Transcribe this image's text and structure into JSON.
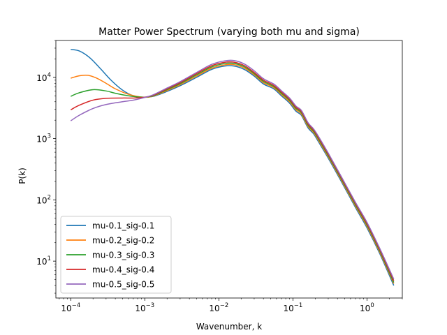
{
  "chart_data": {
    "type": "line",
    "title": "Matter Power Spectrum (varying both mu and sigma)",
    "xlabel": "Wavenumber, k",
    "ylabel": "P(k)",
    "xscale": "log",
    "yscale": "log",
    "xlim": [
      6.3e-05,
      3.0
    ],
    "ylim": [
      2.5,
      40000
    ],
    "grid": false,
    "legend_position": "lower-left",
    "x_ticks": [
      {
        "value": 0.0001,
        "mantissa": "10",
        "exp": "−4"
      },
      {
        "value": 0.001,
        "mantissa": "10",
        "exp": "−3"
      },
      {
        "value": 0.01,
        "mantissa": "10",
        "exp": "−2"
      },
      {
        "value": 0.1,
        "mantissa": "10",
        "exp": "−1"
      },
      {
        "value": 1,
        "mantissa": "10",
        "exp": "0"
      }
    ],
    "y_ticks": [
      {
        "value": 10,
        "mantissa": "10",
        "exp": "1"
      },
      {
        "value": 100,
        "mantissa": "10",
        "exp": "2"
      },
      {
        "value": 1000,
        "mantissa": "10",
        "exp": "3"
      },
      {
        "value": 10000,
        "mantissa": "10",
        "exp": "4"
      }
    ],
    "series": [
      {
        "name": "mu-0.1_sig-0.1",
        "color": "#1f77b4",
        "points": [
          [
            0.0001,
            28500
          ],
          [
            0.00013,
            27000
          ],
          [
            0.00018,
            21000
          ],
          [
            0.00025,
            14000
          ],
          [
            0.00035,
            9000
          ],
          [
            0.0005,
            6200
          ],
          [
            0.0007,
            5000
          ],
          [
            0.00095,
            4750
          ],
          [
            0.0013,
            4900
          ],
          [
            0.002,
            5900
          ],
          [
            0.003,
            7300
          ],
          [
            0.005,
            10000
          ],
          [
            0.008,
            13500
          ],
          [
            0.012,
            15300
          ],
          [
            0.016,
            15300
          ],
          [
            0.022,
            13500
          ],
          [
            0.03,
            10500
          ],
          [
            0.04,
            7800
          ],
          [
            0.055,
            6500
          ],
          [
            0.07,
            5000
          ],
          [
            0.09,
            3800
          ],
          [
            0.11,
            2800
          ],
          [
            0.13,
            2400
          ],
          [
            0.16,
            1500
          ],
          [
            0.19,
            1200
          ],
          [
            0.22,
            900
          ],
          [
            0.3,
            480
          ],
          [
            0.45,
            200
          ],
          [
            0.7,
            75
          ],
          [
            1.0,
            35
          ],
          [
            1.5,
            13
          ],
          [
            2.3,
            4.0
          ]
        ]
      },
      {
        "name": "mu-0.2_sig-0.2",
        "color": "#ff7f0e",
        "points": [
          [
            0.0001,
            9700
          ],
          [
            0.00013,
            10600
          ],
          [
            0.00017,
            10800
          ],
          [
            0.00022,
            9800
          ],
          [
            0.0003,
            8000
          ],
          [
            0.0004,
            6500
          ],
          [
            0.0006,
            5300
          ],
          [
            0.00095,
            4750
          ],
          [
            0.0013,
            4950
          ],
          [
            0.002,
            6100
          ],
          [
            0.003,
            7600
          ],
          [
            0.005,
            10500
          ],
          [
            0.008,
            14100
          ],
          [
            0.012,
            16000
          ],
          [
            0.016,
            16100
          ],
          [
            0.022,
            14200
          ],
          [
            0.03,
            11000
          ],
          [
            0.04,
            8200
          ],
          [
            0.055,
            6800
          ],
          [
            0.07,
            5250
          ],
          [
            0.09,
            4000
          ],
          [
            0.11,
            2950
          ],
          [
            0.13,
            2520
          ],
          [
            0.16,
            1580
          ],
          [
            0.19,
            1260
          ],
          [
            0.22,
            950
          ],
          [
            0.3,
            505
          ],
          [
            0.45,
            210
          ],
          [
            0.7,
            79
          ],
          [
            1.0,
            37
          ],
          [
            1.5,
            13.7
          ],
          [
            2.3,
            4.3
          ]
        ]
      },
      {
        "name": "mu-0.3_sig-0.3",
        "color": "#2ca02c",
        "points": [
          [
            0.0001,
            4900
          ],
          [
            0.00013,
            5600
          ],
          [
            0.0002,
            6300
          ],
          [
            0.0003,
            6000
          ],
          [
            0.0004,
            5500
          ],
          [
            0.0006,
            5000
          ],
          [
            0.0008,
            4800
          ],
          [
            0.001,
            4750
          ],
          [
            0.0013,
            5000
          ],
          [
            0.002,
            6300
          ],
          [
            0.003,
            7900
          ],
          [
            0.005,
            11000
          ],
          [
            0.008,
            14800
          ],
          [
            0.012,
            16800
          ],
          [
            0.016,
            16900
          ],
          [
            0.022,
            14900
          ],
          [
            0.03,
            11500
          ],
          [
            0.04,
            8600
          ],
          [
            0.055,
            7100
          ],
          [
            0.07,
            5500
          ],
          [
            0.09,
            4200
          ],
          [
            0.11,
            3100
          ],
          [
            0.13,
            2650
          ],
          [
            0.16,
            1660
          ],
          [
            0.19,
            1320
          ],
          [
            0.22,
            1000
          ],
          [
            0.3,
            530
          ],
          [
            0.45,
            220
          ],
          [
            0.7,
            83
          ],
          [
            1.0,
            39
          ],
          [
            1.5,
            14.4
          ],
          [
            2.3,
            4.5
          ]
        ]
      },
      {
        "name": "mu-0.4_sig-0.4",
        "color": "#d62728",
        "points": [
          [
            0.0001,
            2950
          ],
          [
            0.00013,
            3500
          ],
          [
            0.0002,
            4250
          ],
          [
            0.0003,
            4550
          ],
          [
            0.0005,
            4600
          ],
          [
            0.0007,
            4600
          ],
          [
            0.001,
            4750
          ],
          [
            0.0013,
            5100
          ],
          [
            0.002,
            6500
          ],
          [
            0.003,
            8200
          ],
          [
            0.005,
            11500
          ],
          [
            0.008,
            15500
          ],
          [
            0.012,
            17600
          ],
          [
            0.016,
            17700
          ],
          [
            0.022,
            15600
          ],
          [
            0.03,
            12000
          ],
          [
            0.04,
            9000
          ],
          [
            0.055,
            7400
          ],
          [
            0.07,
            5750
          ],
          [
            0.09,
            4400
          ],
          [
            0.11,
            3250
          ],
          [
            0.13,
            2780
          ],
          [
            0.16,
            1740
          ],
          [
            0.19,
            1380
          ],
          [
            0.22,
            1050
          ],
          [
            0.3,
            555
          ],
          [
            0.45,
            230
          ],
          [
            0.7,
            87
          ],
          [
            1.0,
            41
          ],
          [
            1.5,
            15.1
          ],
          [
            2.3,
            4.8
          ]
        ]
      },
      {
        "name": "mu-0.5_sig-0.5",
        "color": "#9467bd",
        "points": [
          [
            0.0001,
            1950
          ],
          [
            0.00013,
            2400
          ],
          [
            0.0002,
            3100
          ],
          [
            0.0003,
            3600
          ],
          [
            0.0005,
            4000
          ],
          [
            0.0007,
            4250
          ],
          [
            0.001,
            4700
          ],
          [
            0.0013,
            5200
          ],
          [
            0.002,
            6700
          ],
          [
            0.003,
            8500
          ],
          [
            0.005,
            12000
          ],
          [
            0.008,
            16300
          ],
          [
            0.012,
            18600
          ],
          [
            0.016,
            18800
          ],
          [
            0.022,
            16600
          ],
          [
            0.03,
            12800
          ],
          [
            0.04,
            9500
          ],
          [
            0.055,
            7800
          ],
          [
            0.07,
            6050
          ],
          [
            0.09,
            4600
          ],
          [
            0.11,
            3400
          ],
          [
            0.13,
            2900
          ],
          [
            0.16,
            1820
          ],
          [
            0.19,
            1440
          ],
          [
            0.22,
            1100
          ],
          [
            0.3,
            580
          ],
          [
            0.45,
            240
          ],
          [
            0.7,
            91
          ],
          [
            1.0,
            43
          ],
          [
            1.5,
            15.8
          ],
          [
            2.3,
            5.1
          ]
        ]
      }
    ]
  }
}
